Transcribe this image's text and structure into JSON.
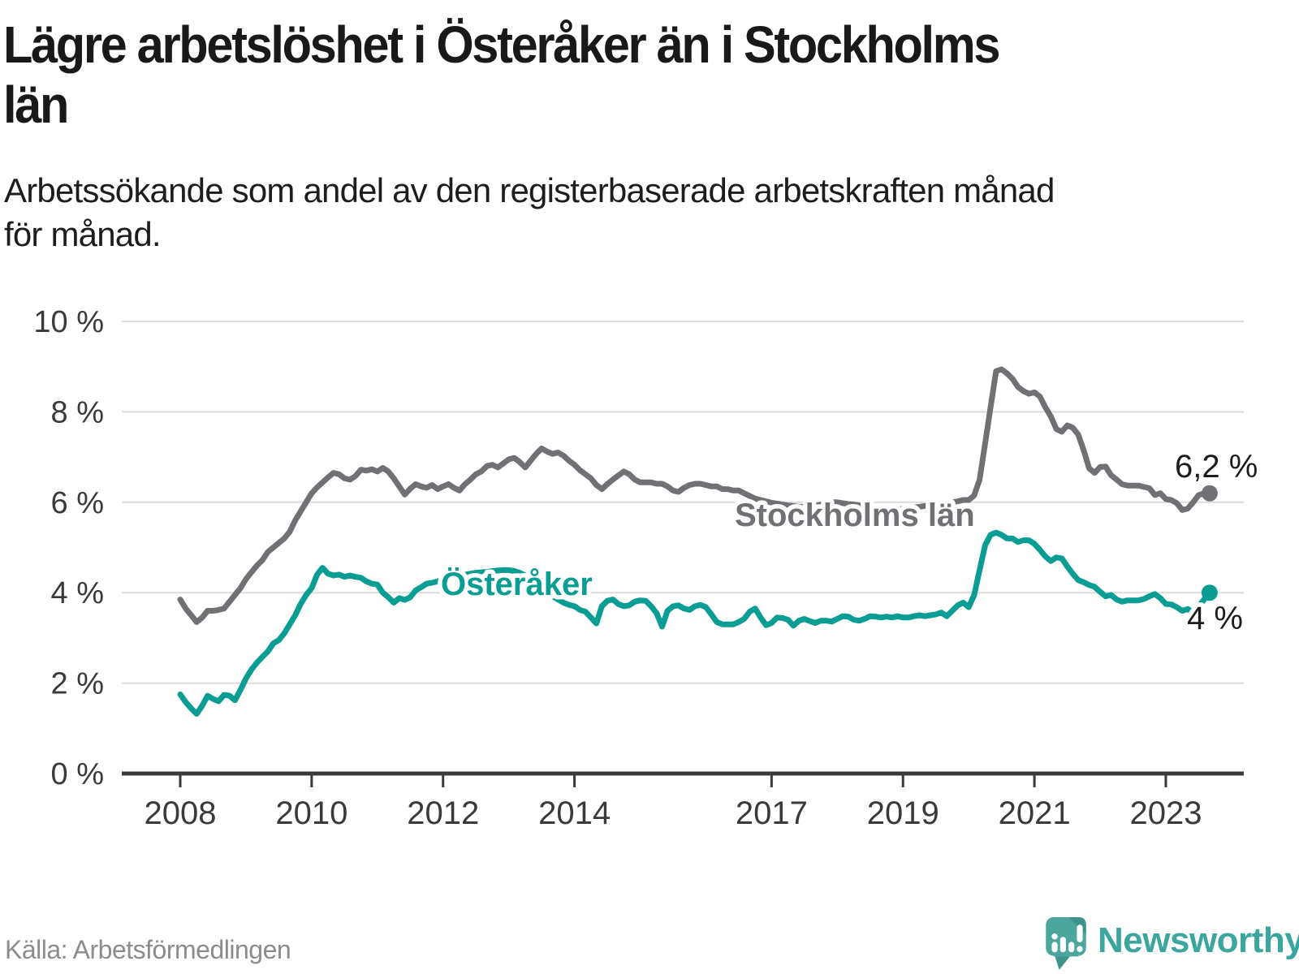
{
  "header": {
    "title": "Lägre arbetslöshet i Österåker än i Stockholms\nlän",
    "subtitle": "Arbetssökande som andel av den registerbaserade arbetskraften månad\nför månad."
  },
  "chart_data": {
    "type": "line",
    "title": "Lägre arbetslöshet i Österåker än i Stockholms län",
    "xlabel": "",
    "ylabel": "",
    "x_unit": "month",
    "x_start": "2008-01",
    "x_end": "2023-09",
    "ylim": [
      0,
      10
    ],
    "grid": "horizontal",
    "legend_position": "inline-labels",
    "y_ticks": {
      "values": [
        0,
        2,
        4,
        6,
        8,
        10
      ],
      "labels": [
        "0 %",
        "2 %",
        "4 %",
        "6 %",
        "8 %",
        "10 %"
      ]
    },
    "x_ticks": {
      "years": [
        2008,
        2010,
        2012,
        2014,
        2017,
        2019,
        2021,
        2023
      ],
      "labels": [
        "2008",
        "2010",
        "2012",
        "2014",
        "2017",
        "2019",
        "2021",
        "2023"
      ]
    },
    "series": [
      {
        "name": "Stockholms län",
        "color": "#717075",
        "end_label": "6,2 %",
        "end_value": 6.2,
        "values": [
          3.85,
          3.65,
          3.5,
          3.35,
          3.45,
          3.6,
          3.6,
          3.62,
          3.65,
          3.8,
          3.95,
          4.1,
          4.3,
          4.45,
          4.6,
          4.72,
          4.9,
          5.0,
          5.1,
          5.2,
          5.35,
          5.6,
          5.8,
          6.0,
          6.2,
          6.33,
          6.44,
          6.55,
          6.65,
          6.62,
          6.53,
          6.5,
          6.58,
          6.72,
          6.7,
          6.73,
          6.68,
          6.76,
          6.68,
          6.53,
          6.35,
          6.17,
          6.3,
          6.4,
          6.35,
          6.32,
          6.38,
          6.29,
          6.35,
          6.4,
          6.32,
          6.26,
          6.4,
          6.5,
          6.62,
          6.68,
          6.8,
          6.83,
          6.77,
          6.86,
          6.95,
          6.98,
          6.89,
          6.77,
          6.92,
          7.07,
          7.19,
          7.12,
          7.07,
          7.1,
          7.03,
          6.92,
          6.83,
          6.71,
          6.62,
          6.53,
          6.38,
          6.29,
          6.4,
          6.5,
          6.59,
          6.68,
          6.62,
          6.5,
          6.44,
          6.44,
          6.44,
          6.41,
          6.41,
          6.35,
          6.26,
          6.23,
          6.32,
          6.38,
          6.41,
          6.41,
          6.38,
          6.35,
          6.35,
          6.29,
          6.29,
          6.26,
          6.26,
          6.2,
          6.14,
          6.08,
          6.05,
          6.02,
          5.99,
          5.97,
          5.95,
          5.93,
          5.92,
          5.9,
          5.9,
          5.9,
          5.92,
          5.95,
          5.97,
          6.0,
          6.0,
          5.98,
          5.96,
          5.95,
          5.93,
          5.92,
          5.9,
          5.88,
          5.87,
          5.86,
          5.85,
          5.85,
          5.85,
          5.86,
          5.88,
          5.9,
          5.92,
          5.94,
          5.96,
          5.98,
          6.0,
          6.0,
          6.02,
          6.05,
          6.05,
          6.15,
          6.5,
          7.3,
          8.1,
          8.9,
          8.94,
          8.85,
          8.73,
          8.55,
          8.46,
          8.4,
          8.43,
          8.34,
          8.1,
          7.9,
          7.62,
          7.56,
          7.7,
          7.65,
          7.5,
          7.15,
          6.75,
          6.65,
          6.78,
          6.79,
          6.6,
          6.5,
          6.4,
          6.37,
          6.37,
          6.37,
          6.34,
          6.31,
          6.16,
          6.2,
          6.07,
          6.05,
          5.98,
          5.83,
          5.86,
          6.0,
          6.16,
          6.2,
          6.2
        ]
      },
      {
        "name": "Österåker",
        "color": "#0a9d94",
        "end_label": "4 %",
        "end_value": 4.0,
        "values": [
          1.75,
          1.58,
          1.44,
          1.32,
          1.5,
          1.72,
          1.65,
          1.6,
          1.74,
          1.72,
          1.62,
          1.85,
          2.1,
          2.3,
          2.45,
          2.58,
          2.7,
          2.88,
          2.95,
          3.1,
          3.3,
          3.5,
          3.75,
          3.95,
          4.1,
          4.4,
          4.55,
          4.42,
          4.38,
          4.4,
          4.35,
          4.38,
          4.35,
          4.33,
          4.25,
          4.2,
          4.18,
          4.0,
          3.9,
          3.78,
          3.88,
          3.84,
          3.9,
          4.05,
          4.12,
          4.2,
          4.22,
          4.25,
          4.3,
          4.33,
          4.36,
          4.38,
          4.4,
          4.42,
          4.44,
          4.45,
          4.46,
          4.48,
          4.49,
          4.5,
          4.5,
          4.48,
          4.44,
          4.38,
          4.3,
          4.2,
          4.1,
          4.0,
          3.92,
          3.85,
          3.78,
          3.73,
          3.7,
          3.62,
          3.58,
          3.45,
          3.32,
          3.7,
          3.82,
          3.85,
          3.75,
          3.7,
          3.72,
          3.8,
          3.83,
          3.82,
          3.7,
          3.55,
          3.25,
          3.6,
          3.7,
          3.72,
          3.65,
          3.62,
          3.7,
          3.73,
          3.68,
          3.52,
          3.35,
          3.3,
          3.3,
          3.3,
          3.35,
          3.42,
          3.58,
          3.65,
          3.45,
          3.28,
          3.33,
          3.45,
          3.44,
          3.4,
          3.27,
          3.38,
          3.42,
          3.37,
          3.33,
          3.38,
          3.38,
          3.36,
          3.42,
          3.48,
          3.47,
          3.4,
          3.38,
          3.42,
          3.48,
          3.47,
          3.45,
          3.47,
          3.45,
          3.48,
          3.45,
          3.45,
          3.48,
          3.5,
          3.48,
          3.5,
          3.52,
          3.56,
          3.48,
          3.6,
          3.72,
          3.78,
          3.68,
          3.95,
          4.5,
          5.05,
          5.28,
          5.33,
          5.28,
          5.2,
          5.2,
          5.12,
          5.16,
          5.16,
          5.08,
          4.95,
          4.8,
          4.7,
          4.78,
          4.76,
          4.58,
          4.42,
          4.28,
          4.23,
          4.17,
          4.13,
          4.02,
          3.92,
          3.95,
          3.85,
          3.8,
          3.83,
          3.83,
          3.83,
          3.86,
          3.92,
          3.97,
          3.88,
          3.75,
          3.74,
          3.68,
          3.6,
          3.64,
          3.56,
          3.7,
          3.85,
          4.0
        ]
      }
    ]
  },
  "footer": {
    "source": "Källa: Arbetsförmedlingen",
    "brand": "Newsworthy"
  }
}
